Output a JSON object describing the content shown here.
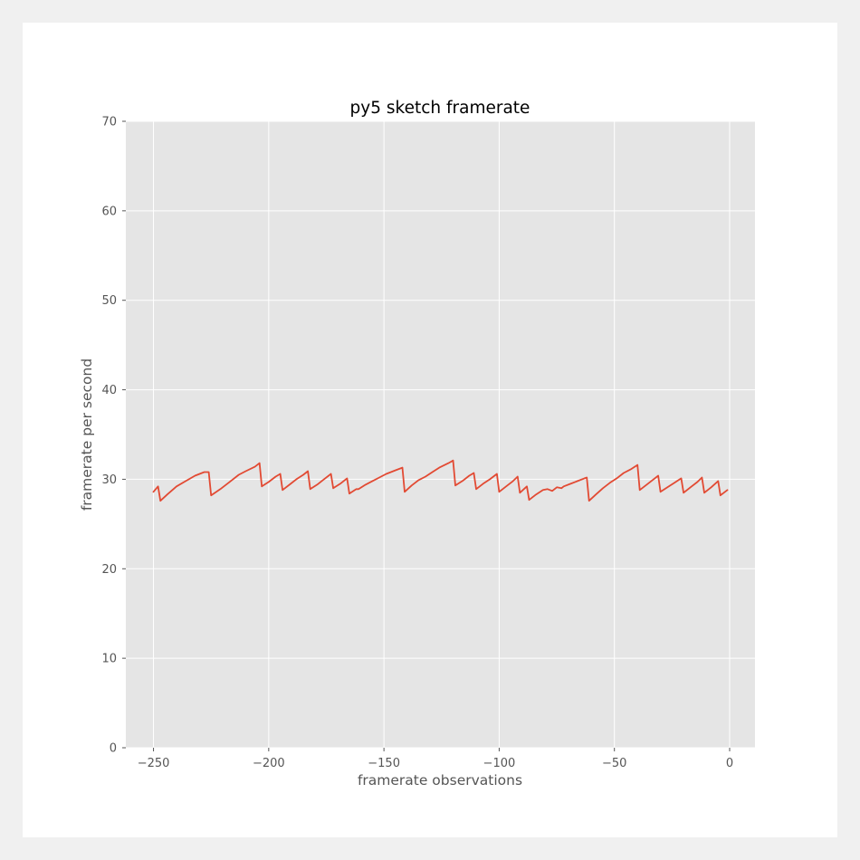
{
  "chart_data": {
    "type": "line",
    "title": "py5 sketch framerate",
    "xlabel": "framerate observations",
    "ylabel": "framerate per second",
    "xlim": [
      -262,
      11
    ],
    "ylim": [
      0,
      70
    ],
    "xticks": [
      -250,
      -200,
      -150,
      -100,
      -50,
      0
    ],
    "xtick_labels": [
      "−250",
      "−200",
      "−150",
      "−100",
      "−50",
      "0"
    ],
    "yticks": [
      0,
      10,
      20,
      30,
      40,
      50,
      60,
      70
    ],
    "ytick_labels": [
      "0",
      "10",
      "20",
      "30",
      "40",
      "50",
      "60",
      "70"
    ],
    "grid": true,
    "colors": {
      "line": "#e24a33",
      "plot_bg": "#e5e5e5",
      "grid": "#ffffff",
      "tick": "#555555"
    },
    "series": [
      {
        "x": [
          -250,
          -248,
          -247,
          -244,
          -240,
          -236,
          -232,
          -228,
          -226,
          -225,
          -221,
          -217,
          -213,
          -210,
          -206,
          -204,
          -203,
          -200,
          -197,
          -195,
          -194,
          -191,
          -188,
          -185,
          -183,
          -182,
          -179,
          -176,
          -173,
          -172,
          -169,
          -166,
          -165,
          -162,
          -161,
          -158,
          -155,
          -152,
          -149,
          -145,
          -142,
          -141,
          -138,
          -135,
          -132,
          -129,
          -126,
          -122,
          -120,
          -119,
          -116,
          -113,
          -111,
          -110,
          -107,
          -104,
          -101,
          -100,
          -97,
          -94,
          -92,
          -91,
          -88,
          -87,
          -84,
          -81,
          -79,
          -77,
          -75,
          -73,
          -72,
          -69,
          -66,
          -63,
          -62,
          -61,
          -58,
          -55,
          -52,
          -49,
          -46,
          -43,
          -40,
          -39,
          -36,
          -33,
          -31,
          -30,
          -27,
          -24,
          -21,
          -20,
          -17,
          -14,
          -12,
          -11,
          -8,
          -5,
          -4,
          -1
        ],
        "y": [
          28.6,
          29.2,
          27.6,
          28.3,
          29.2,
          29.8,
          30.4,
          30.8,
          30.8,
          28.2,
          28.9,
          29.7,
          30.5,
          30.9,
          31.4,
          31.8,
          29.2,
          29.7,
          30.3,
          30.6,
          28.8,
          29.4,
          30.0,
          30.5,
          30.9,
          28.9,
          29.4,
          30.0,
          30.6,
          29.0,
          29.5,
          30.1,
          28.4,
          28.9,
          28.9,
          29.4,
          29.8,
          30.2,
          30.6,
          31.0,
          31.3,
          28.6,
          29.3,
          29.9,
          30.3,
          30.8,
          31.3,
          31.8,
          32.1,
          29.3,
          29.8,
          30.4,
          30.7,
          28.9,
          29.5,
          30.0,
          30.6,
          28.6,
          29.2,
          29.8,
          30.3,
          28.5,
          29.2,
          27.7,
          28.3,
          28.8,
          28.9,
          28.7,
          29.1,
          29.0,
          29.2,
          29.5,
          29.8,
          30.1,
          30.2,
          27.6,
          28.3,
          29.0,
          29.6,
          30.1,
          30.7,
          31.1,
          31.6,
          28.8,
          29.4,
          30.0,
          30.4,
          28.6,
          29.1,
          29.6,
          30.1,
          28.5,
          29.1,
          29.7,
          30.2,
          28.5,
          29.1,
          29.8,
          28.2,
          28.8
        ]
      }
    ]
  }
}
